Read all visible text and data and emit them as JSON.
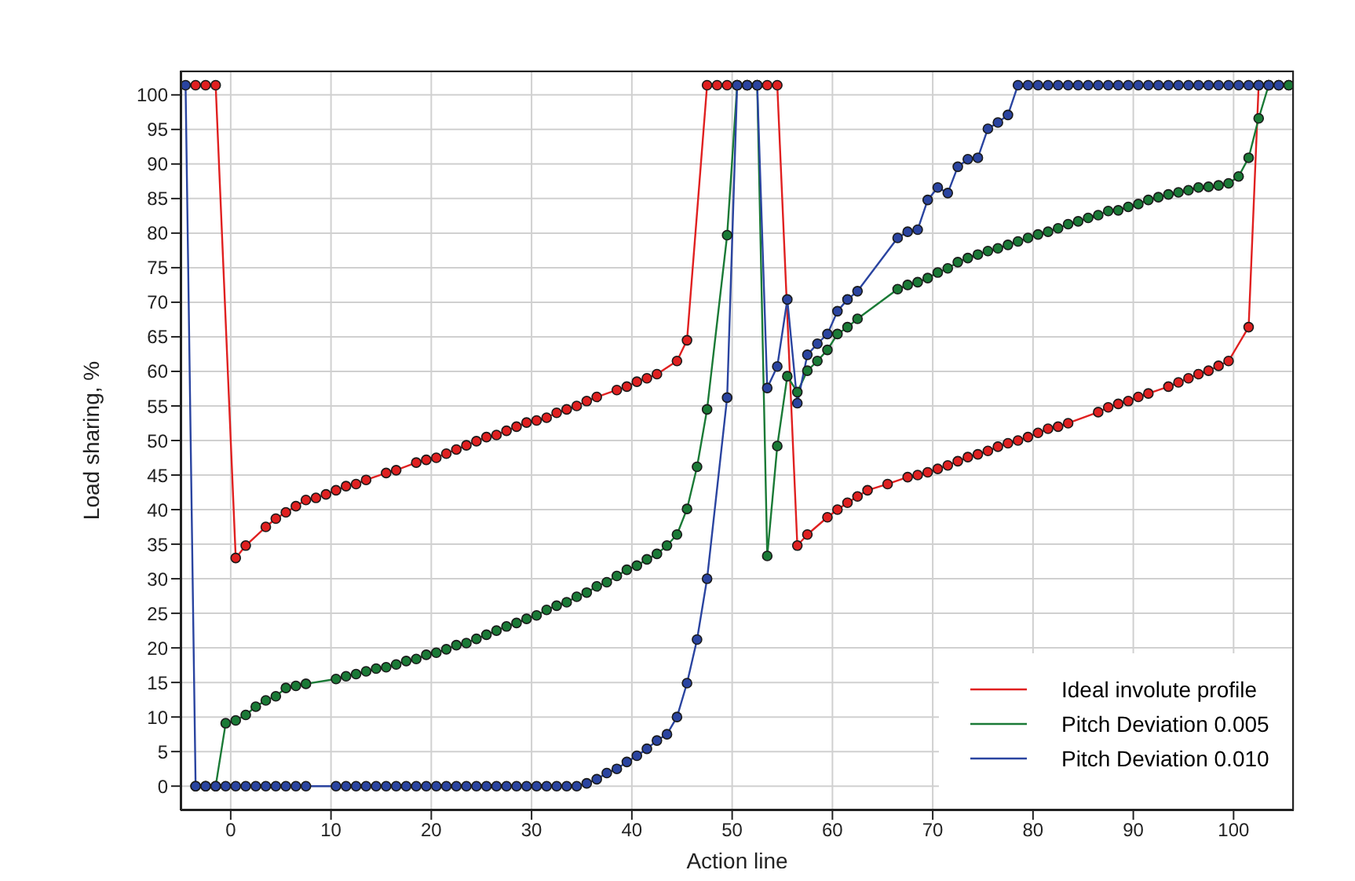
{
  "chart_data": {
    "type": "line",
    "xlabel": "Action line",
    "ylabel": "Load sharing, %",
    "x": [
      -4.5,
      -3.5,
      -2.5,
      -1.5,
      -0.5,
      0.5,
      1.5,
      2.5,
      3.5,
      4.5,
      5.5,
      6.5,
      7.5,
      8.5,
      9.5,
      10.5,
      11.5,
      12.5,
      13.5,
      14.5,
      15.5,
      16.5,
      17.5,
      18.5,
      19.5,
      20.5,
      21.5,
      22.5,
      23.5,
      24.5,
      25.5,
      26.5,
      27.5,
      28.5,
      29.5,
      30.5,
      31.5,
      32.5,
      33.5,
      34.5,
      35.5,
      36.5,
      37.5,
      38.5,
      39.5,
      40.5,
      41.5,
      42.5,
      43.5,
      44.5,
      45.5,
      46.5,
      47.5,
      48.5,
      49.5,
      50.5,
      51.5,
      52.5,
      53.5,
      54.5,
      55.5,
      56.5,
      57.5,
      58.5,
      59.5,
      60.5,
      61.5,
      62.5,
      63.5,
      64.5,
      65.5,
      66.5,
      67.5,
      68.5,
      69.5,
      70.5,
      71.5,
      72.5,
      73.5,
      74.5,
      75.5,
      76.5,
      77.5,
      78.5,
      79.5,
      80.5,
      81.5,
      82.5,
      83.5,
      84.5,
      85.5,
      86.5,
      87.5,
      88.5,
      89.5,
      90.5,
      91.5,
      92.5,
      93.5,
      94.5,
      95.5,
      96.5,
      97.5,
      98.5,
      99.5,
      100.5,
      101.5,
      102.5,
      103.5,
      104.5,
      105.5
    ],
    "series": [
      {
        "name": "Ideal involute profile",
        "color": "#e02020",
        "values": [
          null,
          101.4,
          101.4,
          101.4,
          null,
          33.0,
          34.8,
          null,
          37.5,
          38.7,
          39.6,
          40.5,
          41.4,
          41.7,
          42.2,
          42.8,
          43.4,
          43.7,
          44.3,
          null,
          45.3,
          45.7,
          null,
          46.8,
          47.2,
          47.5,
          48.1,
          48.7,
          49.3,
          49.9,
          50.5,
          50.8,
          51.4,
          52.0,
          52.6,
          52.9,
          53.3,
          54.0,
          54.5,
          55.0,
          55.7,
          56.3,
          null,
          57.3,
          57.8,
          58.5,
          59.0,
          59.6,
          null,
          61.5,
          64.5,
          null,
          101.4,
          101.4,
          101.4,
          101.4,
          101.4,
          101.4,
          101.4,
          101.4,
          null,
          34.8,
          36.4,
          null,
          38.9,
          40.0,
          41.0,
          41.9,
          42.8,
          null,
          43.7,
          null,
          44.7,
          45.0,
          45.4,
          45.9,
          46.4,
          47.0,
          47.6,
          48.0,
          48.5,
          49.1,
          49.6,
          50.0,
          50.5,
          51.1,
          51.7,
          52.0,
          52.5,
          null,
          null,
          54.1,
          54.8,
          55.3,
          55.7,
          56.3,
          56.8,
          null,
          57.8,
          58.4,
          59.0,
          59.6,
          60.1,
          60.8,
          61.5,
          null,
          66.4,
          101.4,
          101.4,
          null,
          101.4
        ]
      },
      {
        "name": "Pitch Deviation 0.005",
        "color": "#1a7a36",
        "values": [
          null,
          0,
          0,
          0,
          9.1,
          9.5,
          10.3,
          11.5,
          12.4,
          13.0,
          14.2,
          14.5,
          14.8,
          null,
          null,
          15.5,
          15.9,
          16.2,
          16.6,
          17.0,
          17.2,
          17.6,
          18.1,
          18.4,
          19.0,
          19.3,
          19.8,
          20.4,
          20.7,
          21.3,
          21.9,
          22.5,
          23.1,
          23.6,
          24.2,
          24.7,
          25.5,
          26.1,
          26.6,
          27.4,
          28.0,
          28.9,
          29.5,
          30.4,
          31.3,
          31.9,
          32.8,
          33.6,
          34.8,
          36.4,
          40.1,
          46.2,
          54.5,
          null,
          79.7,
          101.4,
          101.4,
          101.4,
          33.3,
          49.2,
          59.3,
          57.0,
          60.1,
          61.5,
          63.1,
          65.4,
          66.4,
          67.6,
          null,
          null,
          null,
          71.9,
          72.5,
          72.9,
          73.5,
          74.3,
          74.9,
          75.8,
          76.4,
          76.9,
          77.4,
          77.8,
          78.3,
          78.8,
          79.3,
          79.8,
          80.2,
          80.7,
          81.3,
          81.7,
          82.2,
          82.6,
          83.2,
          83.3,
          83.8,
          84.2,
          84.8,
          85.2,
          85.6,
          85.9,
          86.2,
          86.6,
          86.7,
          86.9,
          87.2,
          88.2,
          90.9,
          96.6,
          101.4,
          101.4,
          101.4
        ]
      },
      {
        "name": "Pitch Deviation 0.010",
        "color": "#2a44a0",
        "values": [
          101.4,
          0,
          0,
          0,
          0,
          0,
          0,
          0,
          0,
          0,
          0,
          0,
          0,
          null,
          null,
          0,
          0,
          0,
          0,
          0,
          0,
          0,
          0,
          0,
          0,
          0,
          0,
          0,
          0,
          0,
          0,
          0,
          0,
          0,
          0,
          0,
          0,
          0,
          0,
          0,
          0.4,
          1.0,
          1.9,
          2.5,
          3.5,
          4.4,
          5.4,
          6.6,
          7.5,
          10.0,
          14.9,
          21.2,
          30.0,
          null,
          56.2,
          101.4,
          101.4,
          101.4,
          57.6,
          60.7,
          70.4,
          55.4,
          62.4,
          64.0,
          65.4,
          68.7,
          70.4,
          71.6,
          null,
          null,
          null,
          79.3,
          80.2,
          80.5,
          84.8,
          86.6,
          85.8,
          89.6,
          90.7,
          90.9,
          95.1,
          96.0,
          97.1,
          101.4,
          101.4,
          101.4,
          101.4,
          101.4,
          101.4,
          101.4,
          101.4,
          101.4,
          101.4,
          101.4,
          101.4,
          101.4,
          101.4,
          101.4,
          101.4,
          101.4,
          101.4,
          101.4,
          101.4,
          101.4,
          101.4,
          101.4,
          101.4,
          101.4,
          101.4,
          101.4,
          null
        ]
      }
    ],
    "xlim": [
      -5,
      106
    ],
    "xticks": [
      0,
      10,
      20,
      30,
      40,
      50,
      60,
      70,
      80,
      90,
      100
    ],
    "ylim": [
      -3.5,
      103.5
    ],
    "yticks": [
      0,
      5,
      10,
      15,
      20,
      25,
      30,
      35,
      40,
      45,
      50,
      55,
      60,
      65,
      70,
      75,
      80,
      85,
      90,
      95,
      100
    ],
    "grid": true,
    "legend": "bottom right",
    "marker": "circle",
    "line_style": "solid"
  }
}
